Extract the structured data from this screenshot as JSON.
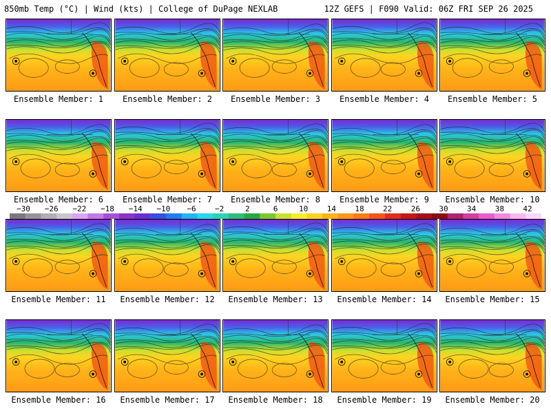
{
  "header": {
    "left": "850mb Temp (°C) | Wind (kts) | College of DuPage NEXLAB",
    "right": "12Z GEFS | F090 Valid: 06Z FRI SEP 26 2025"
  },
  "panels": [
    {
      "label": "Ensemble Member: 1"
    },
    {
      "label": "Ensemble Member: 2"
    },
    {
      "label": "Ensemble Member: 3"
    },
    {
      "label": "Ensemble Member: 4"
    },
    {
      "label": "Ensemble Member: 5"
    },
    {
      "label": "Ensemble Member: 6"
    },
    {
      "label": "Ensemble Member: 7"
    },
    {
      "label": "Ensemble Member: 8"
    },
    {
      "label": "Ensemble Member: 9"
    },
    {
      "label": "Ensemble Member: 10"
    },
    {
      "label": "Ensemble Member: 11"
    },
    {
      "label": "Ensemble Member: 12"
    },
    {
      "label": "Ensemble Member: 13"
    },
    {
      "label": "Ensemble Member: 14"
    },
    {
      "label": "Ensemble Member: 15"
    },
    {
      "label": "Ensemble Member: 16"
    },
    {
      "label": "Ensemble Member: 17"
    },
    {
      "label": "Ensemble Member: 18"
    },
    {
      "label": "Ensemble Member: 19"
    },
    {
      "label": "Ensemble Member: 20"
    }
  ],
  "colorbar": {
    "tick_labels": [
      "−30",
      "−26",
      "−22",
      "−18",
      "−14",
      "−10",
      "−6",
      "−2",
      "2",
      "6",
      "10",
      "14",
      "18",
      "22",
      "26",
      "30",
      "34",
      "38",
      "42"
    ],
    "colors": [
      "#7a7a7a",
      "#959595",
      "#b0b0b0",
      "#c8c8c8",
      "#d9a7f0",
      "#c27ae6",
      "#a64fd9",
      "#8a34c8",
      "#6a2fd0",
      "#3a4fe0",
      "#1f7ff0",
      "#22b4f5",
      "#26d8e8",
      "#2ad3b8",
      "#2bbf7a",
      "#26a843",
      "#7bc832",
      "#c8e130",
      "#f2ef2a",
      "#ffd320",
      "#ffb318",
      "#ff9716",
      "#ff7a14",
      "#f55414",
      "#e02f14",
      "#c41a14",
      "#a6101a",
      "#8c0a14",
      "#b0246a",
      "#d23ea0",
      "#e85ecc",
      "#f08ae0",
      "#f8b6ee",
      "#fad8f6"
    ]
  }
}
